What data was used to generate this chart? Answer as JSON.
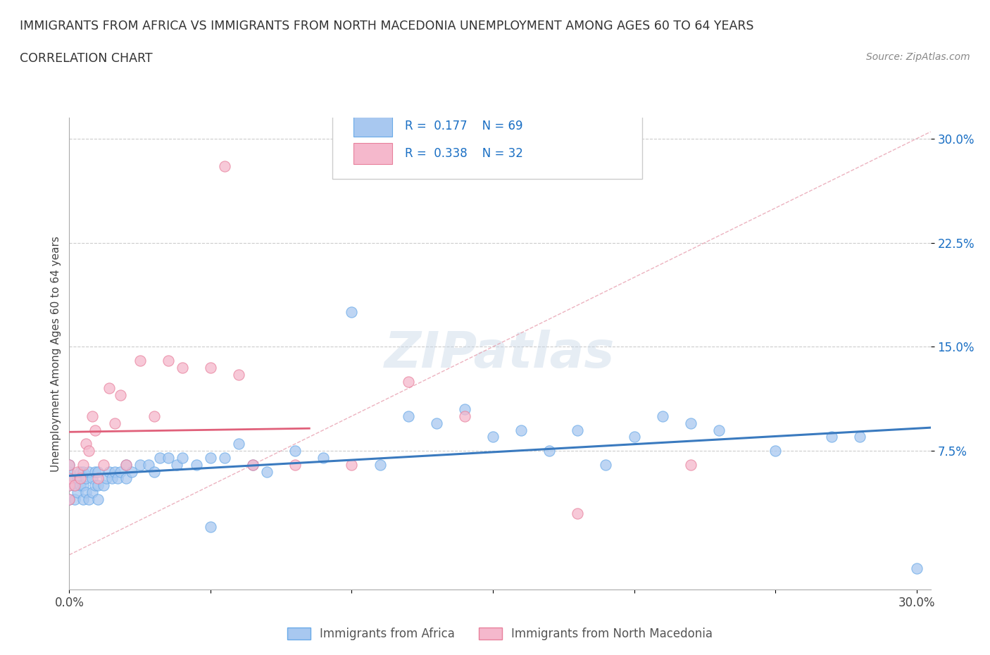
{
  "title_line1": "IMMIGRANTS FROM AFRICA VS IMMIGRANTS FROM NORTH MACEDONIA UNEMPLOYMENT AMONG AGES 60 TO 64 YEARS",
  "title_line2": "CORRELATION CHART",
  "source": "Source: ZipAtlas.com",
  "ylabel": "Unemployment Among Ages 60 to 64 years",
  "xlim": [
    0.0,
    0.305
  ],
  "ylim": [
    -0.025,
    0.315
  ],
  "ytick_positions": [
    0.075,
    0.15,
    0.225,
    0.3
  ],
  "ytick_labels": [
    "7.5%",
    "15.0%",
    "22.5%",
    "30.0%"
  ],
  "africa_color": "#a8c8f0",
  "africa_edge": "#6aaae8",
  "africa_line_color": "#3a7abf",
  "nmacedonia_color": "#f5b8cc",
  "nmacedonia_edge": "#e8809c",
  "nmacedonia_line_color": "#e0607a",
  "R_africa": 0.177,
  "N_africa": 69,
  "R_nmacedonia": 0.338,
  "N_nmacedonia": 32,
  "legend_label_africa": "Immigrants from Africa",
  "legend_label_nmacedonia": "Immigrants from North Macedonia",
  "watermark": "ZIPatlas",
  "africa_scatter_x": [
    0.0,
    0.0,
    0.0,
    0.0,
    0.0,
    0.002,
    0.002,
    0.003,
    0.003,
    0.004,
    0.004,
    0.005,
    0.005,
    0.005,
    0.006,
    0.006,
    0.007,
    0.007,
    0.008,
    0.008,
    0.009,
    0.009,
    0.01,
    0.01,
    0.01,
    0.012,
    0.013,
    0.014,
    0.015,
    0.016,
    0.017,
    0.018,
    0.02,
    0.02,
    0.022,
    0.025,
    0.028,
    0.03,
    0.032,
    0.035,
    0.038,
    0.04,
    0.045,
    0.05,
    0.05,
    0.055,
    0.06,
    0.065,
    0.07,
    0.08,
    0.09,
    0.1,
    0.11,
    0.12,
    0.13,
    0.14,
    0.15,
    0.16,
    0.17,
    0.18,
    0.19,
    0.2,
    0.21,
    0.22,
    0.23,
    0.25,
    0.27,
    0.28,
    0.3
  ],
  "africa_scatter_y": [
    0.04,
    0.05,
    0.055,
    0.06,
    0.065,
    0.04,
    0.05,
    0.045,
    0.055,
    0.05,
    0.06,
    0.04,
    0.05,
    0.06,
    0.045,
    0.055,
    0.04,
    0.06,
    0.045,
    0.055,
    0.05,
    0.06,
    0.04,
    0.05,
    0.06,
    0.05,
    0.055,
    0.06,
    0.055,
    0.06,
    0.055,
    0.06,
    0.055,
    0.065,
    0.06,
    0.065,
    0.065,
    0.06,
    0.07,
    0.07,
    0.065,
    0.07,
    0.065,
    0.02,
    0.07,
    0.07,
    0.08,
    0.065,
    0.06,
    0.075,
    0.07,
    0.175,
    0.065,
    0.1,
    0.095,
    0.105,
    0.085,
    0.09,
    0.075,
    0.09,
    0.065,
    0.085,
    0.1,
    0.095,
    0.09,
    0.075,
    0.085,
    0.085,
    -0.01
  ],
  "nmacedonia_scatter_x": [
    0.0,
    0.0,
    0.0,
    0.0,
    0.002,
    0.003,
    0.004,
    0.005,
    0.006,
    0.007,
    0.008,
    0.009,
    0.01,
    0.012,
    0.014,
    0.016,
    0.018,
    0.02,
    0.025,
    0.03,
    0.035,
    0.04,
    0.05,
    0.055,
    0.06,
    0.065,
    0.08,
    0.1,
    0.12,
    0.14,
    0.18,
    0.22
  ],
  "nmacedonia_scatter_y": [
    0.04,
    0.05,
    0.055,
    0.065,
    0.05,
    0.06,
    0.055,
    0.065,
    0.08,
    0.075,
    0.1,
    0.09,
    0.055,
    0.065,
    0.12,
    0.095,
    0.115,
    0.065,
    0.14,
    0.1,
    0.14,
    0.135,
    0.135,
    0.28,
    0.13,
    0.065,
    0.065,
    0.065,
    0.125,
    0.1,
    0.03,
    0.065
  ]
}
